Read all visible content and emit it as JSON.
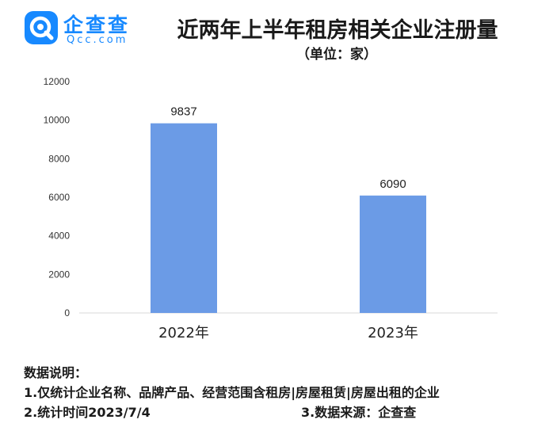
{
  "header": {
    "logo_cn": "企查查",
    "logo_en": "Qcc.com",
    "title": "近两年上半年租房相关企业注册量",
    "unit": "（单位：家）"
  },
  "colors": {
    "bar": "#6b9be6",
    "logo": "#1789ff",
    "axis": "#d9d9d9"
  },
  "chart_data": {
    "type": "bar",
    "categories": [
      "2022年",
      "2023年"
    ],
    "values": [
      9837,
      6090
    ],
    "title": "近两年上半年租房相关企业注册量",
    "ylabel": "",
    "xlabel": "",
    "ylim": [
      0,
      12000
    ],
    "yticks": [
      0,
      2000,
      4000,
      6000,
      8000,
      10000,
      12000
    ],
    "grid": false,
    "data_labels": true
  },
  "notes": {
    "heading": "数据说明：",
    "line1": "1.仅统计企业名称、品牌产品、经营范围含租房|房屋租赁|房屋出租的企业",
    "line2": "2.统计时间2023/7/4",
    "line3": "3.数据来源：企查查"
  }
}
